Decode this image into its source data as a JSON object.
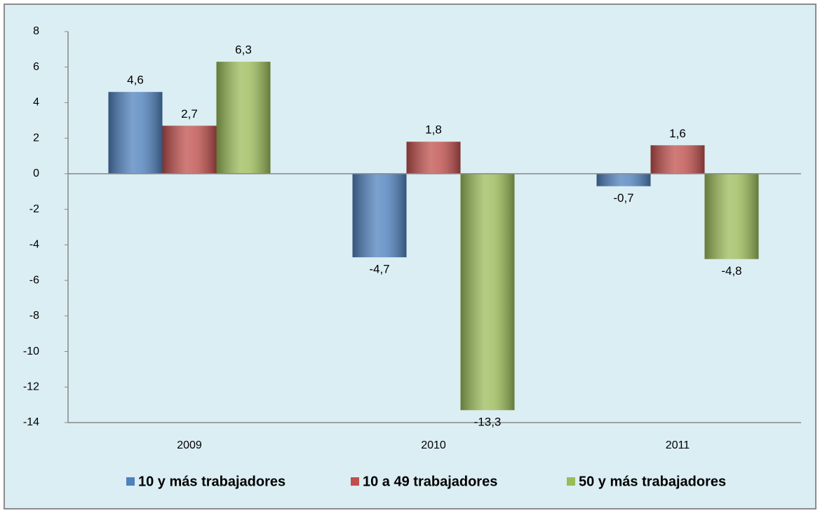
{
  "chart_data": {
    "type": "bar",
    "categories": [
      "2009",
      "2010",
      "2011"
    ],
    "series": [
      {
        "name": "10 y más trabajadores",
        "color": "#4f81bd",
        "values": [
          4.6,
          -4.7,
          -0.7
        ],
        "value_labels": [
          "4,6",
          "-4,7",
          "-0,7"
        ]
      },
      {
        "name": "10 a 49 trabajadores",
        "color": "#c0504d",
        "values": [
          2.7,
          1.8,
          1.6
        ],
        "value_labels": [
          "2,7",
          "1,8",
          "1,6"
        ]
      },
      {
        "name": "50 y más trabajadores",
        "color": "#9bbb59",
        "values": [
          6.3,
          -13.3,
          -4.8
        ],
        "value_labels": [
          "6,3",
          "-13,3",
          "-4,8"
        ]
      }
    ],
    "ylim": [
      -14,
      8
    ],
    "yticks": [
      8,
      6,
      4,
      2,
      0,
      -2,
      -4,
      -6,
      -8,
      -10,
      -12,
      -14
    ],
    "legend": "bottom",
    "grid": false
  }
}
